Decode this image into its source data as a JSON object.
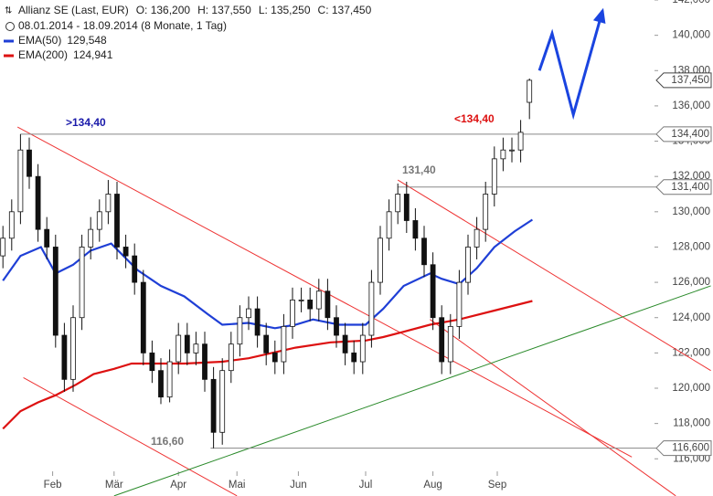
{
  "chart_data": {
    "type": "candlestick",
    "title": "Allianz SE (Last, EUR)",
    "ohlc": [
      "O: 136,200",
      "H: 137,550",
      "L: 135,250",
      "C: 137,450"
    ],
    "subtitle": "08.01.2014 - 18.09.2014 (8 Monate, 1 Tag)",
    "xlim": [
      -1,
      224
    ],
    "ylim": [
      115.6,
      142.0
    ],
    "xticks": [
      {
        "value": 17,
        "label": "Feb"
      },
      {
        "value": 38,
        "label": "Mär"
      },
      {
        "value": 60,
        "label": "Apr"
      },
      {
        "value": 80,
        "label": "Mai"
      },
      {
        "value": 101,
        "label": "Jun"
      },
      {
        "value": 124,
        "label": "Jul"
      },
      {
        "value": 147,
        "label": "Aug"
      },
      {
        "value": 169,
        "label": "Sep"
      }
    ],
    "yticks": [
      {
        "value": 116,
        "label": "116,000"
      },
      {
        "value": 118,
        "label": "118,000"
      },
      {
        "value": 120,
        "label": "120,000"
      },
      {
        "value": 122,
        "label": "122,000"
      },
      {
        "value": 124,
        "label": "124,000"
      },
      {
        "value": 126,
        "label": "126,000"
      },
      {
        "value": 128,
        "label": "128,000"
      },
      {
        "value": 130,
        "label": "130,000"
      },
      {
        "value": 132,
        "label": "132,000"
      },
      {
        "value": 134,
        "label": "134,000"
      },
      {
        "value": 136,
        "label": "136,000"
      },
      {
        "value": 138,
        "label": "138,000"
      },
      {
        "value": 140,
        "label": "140,000"
      },
      {
        "value": 142,
        "label": "142,000"
      }
    ],
    "x": [
      0,
      3,
      6,
      9,
      12,
      15,
      18,
      21,
      24,
      27,
      30,
      33,
      36,
      39,
      42,
      45,
      48,
      51,
      54,
      57,
      60,
      63,
      66,
      69,
      72,
      75,
      78,
      81,
      84,
      87,
      90,
      93,
      96,
      99,
      102,
      105,
      108,
      111,
      114,
      117,
      120,
      123,
      126,
      129,
      132,
      135,
      138,
      141,
      144,
      147,
      150,
      153,
      156,
      159,
      162,
      165,
      168,
      171,
      174,
      177,
      180
    ],
    "opens": [
      127.5,
      128.5,
      130,
      133.5,
      132,
      129,
      128,
      123,
      120.5,
      124,
      128,
      129,
      130,
      131,
      128,
      127.5,
      126,
      122,
      121,
      119.5,
      121.5,
      123,
      122,
      122.5,
      120.5,
      117.5,
      121,
      122.5,
      124,
      124.5,
      123,
      122,
      121.5,
      123.5,
      125,
      125,
      124.5,
      125.5,
      124,
      123,
      122,
      121.5,
      123,
      126,
      128.5,
      130,
      131,
      129.5,
      128.5,
      127,
      124,
      121.5,
      123.5,
      126,
      128,
      129,
      131,
      133,
      133.5,
      133.5,
      136.2
    ],
    "highs": [
      129.2,
      130.7,
      134.4,
      134.2,
      132.7,
      129.7,
      128.7,
      123.7,
      124.7,
      128.7,
      129.7,
      130.7,
      131.8,
      131.7,
      128.7,
      128.2,
      126.7,
      122.7,
      121.7,
      122.2,
      123.7,
      123.7,
      123.2,
      123.2,
      121.2,
      121.7,
      123.2,
      124.7,
      125.2,
      125.2,
      123.7,
      122.7,
      124.2,
      125.7,
      125.7,
      125.7,
      126.2,
      126.2,
      124.7,
      123.7,
      122.7,
      123.7,
      126.7,
      129.2,
      130.7,
      131.6,
      131.7,
      130.2,
      129.2,
      127.7,
      124.7,
      124.2,
      126.7,
      128.7,
      129.7,
      131.7,
      133.7,
      134.2,
      134.2,
      135.2,
      137.55
    ],
    "lows": [
      126.8,
      127.8,
      129.3,
      131.3,
      128.3,
      127.3,
      122.3,
      119.8,
      119.8,
      123.3,
      127.3,
      128.3,
      129.3,
      127.3,
      126.8,
      125.3,
      121.3,
      120.3,
      119.1,
      119.2,
      120.8,
      121.3,
      121.3,
      119.8,
      116.6,
      116.8,
      120.3,
      121.8,
      123.3,
      122.3,
      121.3,
      120.8,
      120.8,
      122.8,
      124.3,
      123.8,
      123.8,
      123.3,
      122.3,
      121.3,
      120.8,
      120.8,
      122.3,
      125.3,
      127.8,
      129.3,
      128.8,
      127.8,
      126.3,
      123.3,
      120.8,
      120.8,
      122.8,
      125.3,
      127.3,
      128.3,
      130.3,
      132.3,
      132.8,
      132.8,
      135.25
    ],
    "closes": [
      128.5,
      130,
      133.5,
      132,
      129,
      128,
      123,
      120.5,
      124,
      128,
      129,
      130,
      131,
      128,
      127.5,
      126,
      122,
      121,
      119.5,
      121.5,
      123,
      122,
      122.5,
      120.5,
      117.5,
      121,
      122.5,
      124,
      124.5,
      123,
      122,
      121.5,
      123.5,
      125,
      125,
      124.5,
      125.5,
      124,
      123,
      122,
      121.5,
      123,
      126,
      128.5,
      130,
      131,
      129.5,
      128.5,
      127,
      124,
      121.5,
      123.5,
      126,
      128,
      129,
      131,
      133,
      133.5,
      133.5,
      134.5,
      137.45
    ],
    "last_label": "137,450",
    "series": [
      {
        "name": "EMA(50)",
        "last_label": "129,548",
        "color": "#1f3fd6",
        "x": [
          0,
          6,
          13,
          18,
          24,
          30,
          37,
          46,
          54,
          62,
          70,
          75,
          84,
          93,
          100,
          106,
          115,
          124,
          130,
          137,
          146,
          150,
          156,
          162,
          168,
          175,
          181
        ],
        "values": [
          126.1,
          127.5,
          128.0,
          126.5,
          127.0,
          127.8,
          128.2,
          126.7,
          125.8,
          125.2,
          124.2,
          123.6,
          123.7,
          123.4,
          123.6,
          123.9,
          123.6,
          123.6,
          124.5,
          125.8,
          126.5,
          126.2,
          125.9,
          126.8,
          128.0,
          128.9,
          129.548
        ]
      },
      {
        "name": "EMA(200)",
        "last_label": "124,941",
        "color": "#dd1111",
        "x": [
          0,
          6,
          12,
          18,
          25,
          31,
          38,
          44,
          52,
          62,
          75,
          84,
          100,
          112,
          124,
          130,
          137,
          146,
          156,
          168,
          181
        ],
        "values": [
          117.7,
          118.7,
          119.2,
          119.6,
          120.2,
          120.8,
          121.1,
          121.4,
          121.4,
          121.4,
          121.5,
          121.7,
          122.3,
          122.6,
          122.7,
          122.9,
          123.2,
          123.6,
          123.9,
          124.4,
          124.941
        ]
      }
    ],
    "trendlines": [
      {
        "color": "#ee3333",
        "x": [
          5,
          215
        ],
        "values": [
          134.8,
          116.1
        ]
      },
      {
        "color": "#ee3333",
        "x": [
          7,
          80
        ],
        "values": [
          120.6,
          113.9
        ]
      },
      {
        "color": "#ee3333",
        "x": [
          135,
          242
        ],
        "values": [
          131.8,
          121.0
        ]
      },
      {
        "color": "#ee3333",
        "x": [
          146,
          230
        ],
        "values": [
          123.9,
          113.9
        ]
      },
      {
        "color": "#2a8a2a",
        "x": [
          38,
          242
        ],
        "values": [
          113.9,
          125.8
        ]
      }
    ],
    "levels": [
      {
        "value": 134.4,
        "x": 6,
        "label": "134,400"
      },
      {
        "value": 131.4,
        "x": 135,
        "label": "131,400"
      },
      {
        "value": 116.6,
        "x": 71,
        "label": "116,600"
      }
    ],
    "projection": {
      "color": "#1a44e0",
      "x": [
        183.4,
        187.75,
        195,
        205
      ],
      "values": [
        138.0,
        140.1,
        135.5,
        141.4
      ]
    },
    "annotations": [
      ">134,40",
      "<134,40",
      "131,40",
      "116,60"
    ]
  }
}
